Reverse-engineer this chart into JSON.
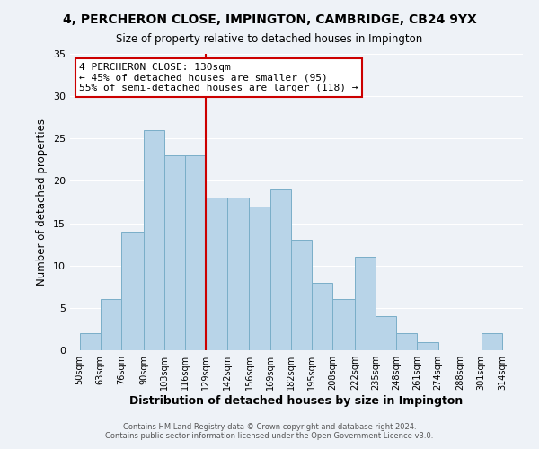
{
  "title": "4, PERCHERON CLOSE, IMPINGTON, CAMBRIDGE, CB24 9YX",
  "subtitle": "Size of property relative to detached houses in Impington",
  "xlabel": "Distribution of detached houses by size in Impington",
  "ylabel": "Number of detached properties",
  "footer_line1": "Contains HM Land Registry data © Crown copyright and database right 2024.",
  "footer_line2": "Contains public sector information licensed under the Open Government Licence v3.0.",
  "bins": [
    50,
    63,
    76,
    90,
    103,
    116,
    129,
    142,
    156,
    169,
    182,
    195,
    208,
    222,
    235,
    248,
    261,
    274,
    288,
    301,
    314
  ],
  "counts": [
    2,
    6,
    14,
    26,
    23,
    23,
    18,
    18,
    17,
    19,
    13,
    8,
    6,
    11,
    4,
    2,
    1,
    0,
    0,
    2
  ],
  "bar_color": "#b8d4e8",
  "bar_edge_color": "#7aaec8",
  "ref_line_x": 129,
  "ref_line_color": "#cc0000",
  "annotation_text": "4 PERCHERON CLOSE: 130sqm\n← 45% of detached houses are smaller (95)\n55% of semi-detached houses are larger (118) →",
  "annotation_box_edge_color": "#cc0000",
  "annotation_box_face_color": "#ffffff",
  "ylim": [
    0,
    35
  ],
  "xlim": [
    44,
    327
  ],
  "tick_labels": [
    "50sqm",
    "63sqm",
    "76sqm",
    "90sqm",
    "103sqm",
    "116sqm",
    "129sqm",
    "142sqm",
    "156sqm",
    "169sqm",
    "182sqm",
    "195sqm",
    "208sqm",
    "222sqm",
    "235sqm",
    "248sqm",
    "261sqm",
    "274sqm",
    "288sqm",
    "301sqm",
    "314sqm"
  ],
  "tick_positions": [
    50,
    63,
    76,
    90,
    103,
    116,
    129,
    142,
    156,
    169,
    182,
    195,
    208,
    222,
    235,
    248,
    261,
    274,
    288,
    301,
    314
  ],
  "yticks": [
    0,
    5,
    10,
    15,
    20,
    25,
    30,
    35
  ],
  "background_color": "#eef2f7",
  "grid_color": "#ffffff"
}
